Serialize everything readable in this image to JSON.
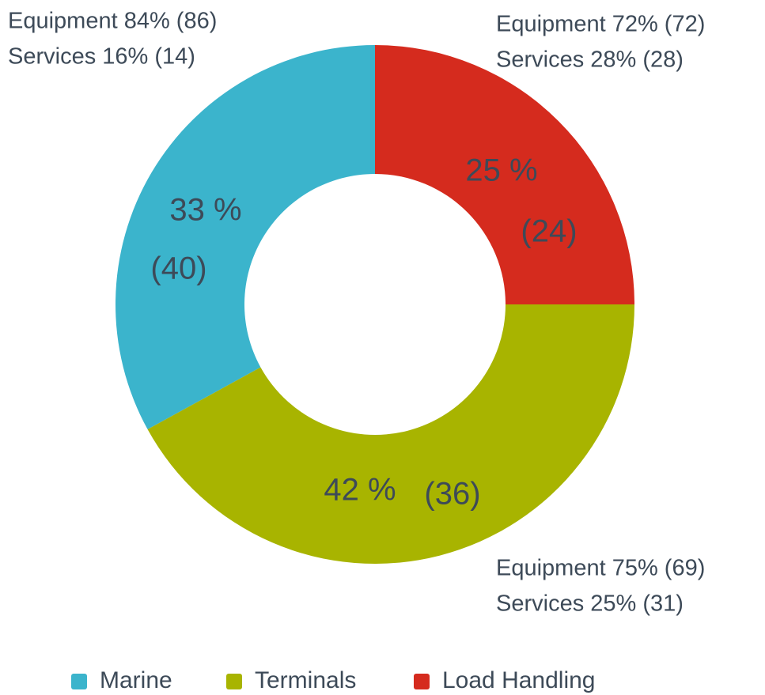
{
  "chart_data": {
    "type": "donut",
    "categories": [
      "Marine",
      "Terminals",
      "Load Handling"
    ],
    "colors": [
      "#3bb4cc",
      "#a8b400",
      "#d52b1e"
    ],
    "values": [
      33,
      42,
      25
    ],
    "value_labels": [
      "33 %",
      "42 %",
      "25 %"
    ],
    "secondary_values": [
      40,
      36,
      24
    ],
    "secondary_labels": [
      "(40)",
      "(36)",
      "(24)"
    ],
    "annotations": [
      [
        "Equipment 84% (86)",
        "Services 16% (14)"
      ],
      [
        "Equipment 75% (69)",
        "Services 25% (31)"
      ],
      [
        "Equipment 72% (72)",
        "Services 28% (28)"
      ]
    ],
    "legend": "bottom"
  }
}
